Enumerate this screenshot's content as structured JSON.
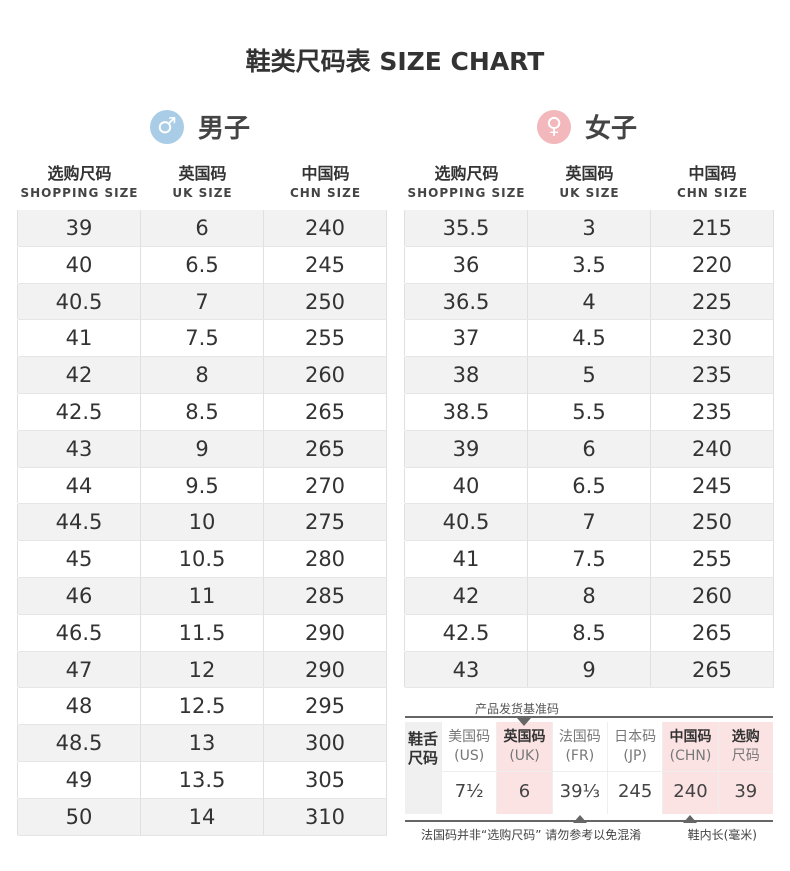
{
  "title": "鞋类尺码表 SIZE CHART",
  "colors": {
    "male": "#a9cde6",
    "female": "#f2b8bb",
    "highlight": "#fbe3e4",
    "row_gray": "#f2f2f2"
  },
  "men": {
    "icon": "male-symbol-icon",
    "label": "男子",
    "headers": [
      {
        "cn": "选购尺码",
        "en": "SHOPPING SIZE"
      },
      {
        "cn": "英国码",
        "en": "UK SIZE"
      },
      {
        "cn": "中国码",
        "en": "CHN SIZE"
      }
    ],
    "rows": [
      [
        "39",
        "6",
        "240"
      ],
      [
        "40",
        "6.5",
        "245"
      ],
      [
        "40.5",
        "7",
        "250"
      ],
      [
        "41",
        "7.5",
        "255"
      ],
      [
        "42",
        "8",
        "260"
      ],
      [
        "42.5",
        "8.5",
        "265"
      ],
      [
        "43",
        "9",
        "265"
      ],
      [
        "44",
        "9.5",
        "270"
      ],
      [
        "44.5",
        "10",
        "275"
      ],
      [
        "45",
        "10.5",
        "280"
      ],
      [
        "46",
        "11",
        "285"
      ],
      [
        "46.5",
        "11.5",
        "290"
      ],
      [
        "47",
        "12",
        "290"
      ],
      [
        "48",
        "12.5",
        "295"
      ],
      [
        "48.5",
        "13",
        "300"
      ],
      [
        "49",
        "13.5",
        "305"
      ],
      [
        "50",
        "14",
        "310"
      ]
    ]
  },
  "women": {
    "icon": "female-symbol-icon",
    "label": "女子",
    "headers": [
      {
        "cn": "选购尺码",
        "en": "SHOPPING SIZE"
      },
      {
        "cn": "英国码",
        "en": "UK SIZE"
      },
      {
        "cn": "中国码",
        "en": "CHN SIZE"
      }
    ],
    "rows": [
      [
        "35.5",
        "3",
        "215"
      ],
      [
        "36",
        "3.5",
        "220"
      ],
      [
        "36.5",
        "4",
        "225"
      ],
      [
        "37",
        "4.5",
        "230"
      ],
      [
        "38",
        "5",
        "235"
      ],
      [
        "38.5",
        "5.5",
        "235"
      ],
      [
        "39",
        "6",
        "240"
      ],
      [
        "40",
        "6.5",
        "245"
      ],
      [
        "40.5",
        "7",
        "250"
      ],
      [
        "41",
        "7.5",
        "255"
      ],
      [
        "42",
        "8",
        "260"
      ],
      [
        "42.5",
        "8.5",
        "265"
      ],
      [
        "43",
        "9",
        "265"
      ]
    ]
  },
  "conversion": {
    "top_note": "产品发货基准码",
    "side_label": "鞋舌尺码",
    "columns": [
      {
        "a": "美国码",
        "b": "(US)",
        "v": "7½",
        "pink": false
      },
      {
        "a": "英国码",
        "b": "(UK)",
        "v": "6",
        "pink": true,
        "down": true
      },
      {
        "a": "法国码",
        "b": "(FR)",
        "v": "39⅓",
        "pink": false,
        "up": true
      },
      {
        "a": "日本码",
        "b": "(JP)",
        "v": "245",
        "pink": false
      },
      {
        "a": "中国码",
        "b": "(CHN)",
        "v": "240",
        "pink": true,
        "up": true
      },
      {
        "a": "选购",
        "b": "尺码",
        "v": "39",
        "pink": true
      }
    ],
    "note_left": "法国码并非“选购尺码” 请勿参考以免混淆",
    "note_right": "鞋内长(毫米)"
  }
}
